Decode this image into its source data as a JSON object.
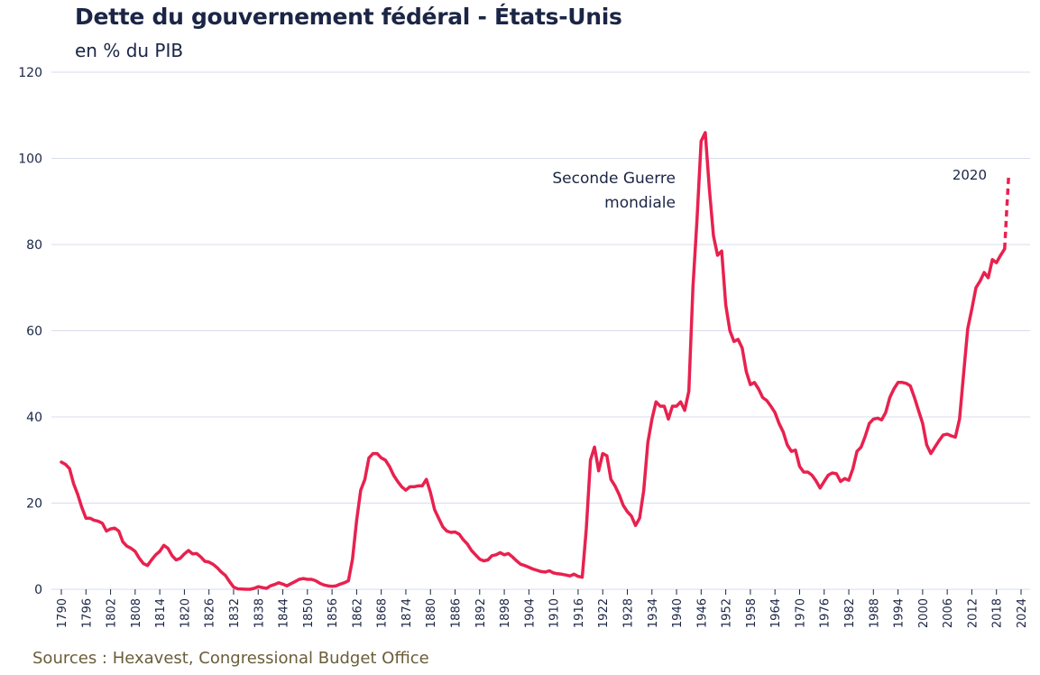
{
  "chart_data": {
    "type": "line",
    "title": "Dette du gouvernement fédéral - États-Unis",
    "subtitle": "en % du PIB",
    "source": "Sources : Hexavest, Congressional Budget Office",
    "xlim": [
      1790,
      2024
    ],
    "ylim": [
      0,
      120
    ],
    "yticks": [
      0,
      20,
      40,
      60,
      80,
      100,
      120
    ],
    "xticks": [
      1790,
      1796,
      1802,
      1808,
      1814,
      1820,
      1826,
      1832,
      1838,
      1844,
      1850,
      1856,
      1862,
      1868,
      1874,
      1880,
      1886,
      1892,
      1898,
      1904,
      1910,
      1916,
      1922,
      1928,
      1934,
      1940,
      1946,
      1952,
      1958,
      1964,
      1970,
      1976,
      1982,
      1988,
      1994,
      2000,
      2006,
      2012,
      2018,
      2024
    ],
    "grid": "horizontal",
    "line_color": "#e8214f",
    "grid_color": "#d9dcec",
    "series": [
      {
        "style": "solid",
        "points": [
          [
            1790,
            29.5
          ],
          [
            1791,
            29
          ],
          [
            1792,
            28
          ],
          [
            1793,
            24.5
          ],
          [
            1794,
            22
          ],
          [
            1795,
            19
          ],
          [
            1796,
            16.5
          ],
          [
            1797,
            16.5
          ],
          [
            1798,
            16
          ],
          [
            1799,
            15.8
          ],
          [
            1800,
            15.3
          ],
          [
            1801,
            13.5
          ],
          [
            1802,
            14
          ],
          [
            1803,
            14.2
          ],
          [
            1804,
            13.5
          ],
          [
            1805,
            11
          ],
          [
            1806,
            10
          ],
          [
            1807,
            9.5
          ],
          [
            1808,
            8.8
          ],
          [
            1809,
            7.2
          ],
          [
            1810,
            6
          ],
          [
            1811,
            5.5
          ],
          [
            1812,
            6.8
          ],
          [
            1813,
            8
          ],
          [
            1814,
            8.8
          ],
          [
            1815,
            10.2
          ],
          [
            1816,
            9.5
          ],
          [
            1817,
            7.8
          ],
          [
            1818,
            6.8
          ],
          [
            1819,
            7.2
          ],
          [
            1820,
            8.2
          ],
          [
            1821,
            9
          ],
          [
            1822,
            8.2
          ],
          [
            1823,
            8.3
          ],
          [
            1824,
            7.5
          ],
          [
            1825,
            6.5
          ],
          [
            1826,
            6.3
          ],
          [
            1827,
            5.8
          ],
          [
            1828,
            5
          ],
          [
            1829,
            4
          ],
          [
            1830,
            3.2
          ],
          [
            1831,
            1.8
          ],
          [
            1832,
            0.5
          ],
          [
            1833,
            0.1
          ],
          [
            1834,
            0.05
          ],
          [
            1835,
            0
          ],
          [
            1836,
            0
          ],
          [
            1837,
            0.2
          ],
          [
            1838,
            0.6
          ],
          [
            1839,
            0.4
          ],
          [
            1840,
            0.2
          ],
          [
            1841,
            0.8
          ],
          [
            1842,
            1.1
          ],
          [
            1843,
            1.5
          ],
          [
            1844,
            1.2
          ],
          [
            1845,
            0.8
          ],
          [
            1846,
            1.3
          ],
          [
            1847,
            1.8
          ],
          [
            1848,
            2.3
          ],
          [
            1849,
            2.5
          ],
          [
            1850,
            2.3
          ],
          [
            1851,
            2.3
          ],
          [
            1852,
            2
          ],
          [
            1853,
            1.4
          ],
          [
            1854,
            1
          ],
          [
            1855,
            0.8
          ],
          [
            1856,
            0.7
          ],
          [
            1857,
            0.8
          ],
          [
            1858,
            1.2
          ],
          [
            1859,
            1.5
          ],
          [
            1860,
            2
          ],
          [
            1861,
            7
          ],
          [
            1862,
            16
          ],
          [
            1863,
            23
          ],
          [
            1864,
            25.5
          ],
          [
            1865,
            30.5
          ],
          [
            1866,
            31.5
          ],
          [
            1867,
            31.5
          ],
          [
            1868,
            30.5
          ],
          [
            1869,
            30
          ],
          [
            1870,
            28.5
          ],
          [
            1871,
            26.5
          ],
          [
            1872,
            25
          ],
          [
            1873,
            23.8
          ],
          [
            1874,
            23
          ],
          [
            1875,
            23.8
          ],
          [
            1876,
            23.8
          ],
          [
            1877,
            24
          ],
          [
            1878,
            24
          ],
          [
            1879,
            25.5
          ],
          [
            1880,
            22.5
          ],
          [
            1881,
            18.5
          ],
          [
            1882,
            16.5
          ],
          [
            1883,
            14.5
          ],
          [
            1884,
            13.5
          ],
          [
            1885,
            13.2
          ],
          [
            1886,
            13.3
          ],
          [
            1887,
            12.8
          ],
          [
            1888,
            11.5
          ],
          [
            1889,
            10.5
          ],
          [
            1890,
            9
          ],
          [
            1891,
            8
          ],
          [
            1892,
            7
          ],
          [
            1893,
            6.6
          ],
          [
            1894,
            6.8
          ],
          [
            1895,
            7.8
          ],
          [
            1896,
            8
          ],
          [
            1897,
            8.5
          ],
          [
            1898,
            8
          ],
          [
            1899,
            8.3
          ],
          [
            1900,
            7.5
          ],
          [
            1901,
            6.6
          ],
          [
            1902,
            5.8
          ],
          [
            1903,
            5.5
          ],
          [
            1904,
            5.1
          ],
          [
            1905,
            4.7
          ],
          [
            1906,
            4.4
          ],
          [
            1907,
            4.1
          ],
          [
            1908,
            4.0
          ],
          [
            1909,
            4.3
          ],
          [
            1910,
            3.8
          ],
          [
            1911,
            3.6
          ],
          [
            1912,
            3.5
          ],
          [
            1913,
            3.3
          ],
          [
            1914,
            3.1
          ],
          [
            1915,
            3.5
          ],
          [
            1916,
            3.0
          ],
          [
            1917,
            2.8
          ],
          [
            1918,
            14
          ],
          [
            1919,
            30
          ],
          [
            1920,
            33
          ],
          [
            1921,
            27.5
          ],
          [
            1922,
            31.5
          ],
          [
            1923,
            31
          ],
          [
            1924,
            25.5
          ],
          [
            1925,
            24
          ],
          [
            1926,
            22
          ],
          [
            1927,
            19.5
          ],
          [
            1928,
            18
          ],
          [
            1929,
            17
          ],
          [
            1930,
            14.8
          ],
          [
            1931,
            16.5
          ],
          [
            1932,
            23
          ],
          [
            1933,
            34
          ],
          [
            1934,
            39.5
          ],
          [
            1935,
            43.5
          ],
          [
            1936,
            42.5
          ],
          [
            1937,
            42.5
          ],
          [
            1938,
            39.5
          ],
          [
            1939,
            42.5
          ],
          [
            1940,
            42.5
          ],
          [
            1941,
            43.5
          ],
          [
            1942,
            41.5
          ],
          [
            1943,
            46
          ],
          [
            1944,
            70
          ],
          [
            1945,
            86
          ],
          [
            1946,
            104
          ],
          [
            1947,
            106
          ],
          [
            1948,
            93
          ],
          [
            1949,
            82
          ],
          [
            1950,
            77.5
          ],
          [
            1951,
            78.5
          ],
          [
            1952,
            66
          ],
          [
            1953,
            60
          ],
          [
            1954,
            57.5
          ],
          [
            1955,
            58
          ],
          [
            1956,
            56
          ],
          [
            1957,
            50.5
          ],
          [
            1958,
            47.5
          ],
          [
            1959,
            48
          ],
          [
            1960,
            46.5
          ],
          [
            1961,
            44.5
          ],
          [
            1962,
            43.8
          ],
          [
            1963,
            42.5
          ],
          [
            1964,
            41
          ],
          [
            1965,
            38.5
          ],
          [
            1966,
            36.5
          ],
          [
            1967,
            33.5
          ],
          [
            1968,
            32
          ],
          [
            1969,
            32.3
          ],
          [
            1970,
            28.5
          ],
          [
            1971,
            27.2
          ],
          [
            1972,
            27.2
          ],
          [
            1973,
            26.5
          ],
          [
            1974,
            25.2
          ],
          [
            1975,
            23.5
          ],
          [
            1976,
            25
          ],
          [
            1977,
            26.5
          ],
          [
            1978,
            27
          ],
          [
            1979,
            26.8
          ],
          [
            1980,
            25
          ],
          [
            1981,
            25.7
          ],
          [
            1982,
            25.3
          ],
          [
            1983,
            28
          ],
          [
            1984,
            32
          ],
          [
            1985,
            33
          ],
          [
            1986,
            35.5
          ],
          [
            1987,
            38.5
          ],
          [
            1988,
            39.5
          ],
          [
            1989,
            39.7
          ],
          [
            1990,
            39.3
          ],
          [
            1991,
            41
          ],
          [
            1992,
            44.5
          ],
          [
            1993,
            46.5
          ],
          [
            1994,
            48
          ],
          [
            1995,
            48
          ],
          [
            1996,
            47.8
          ],
          [
            1997,
            47.2
          ],
          [
            1998,
            44.5
          ],
          [
            1999,
            41.5
          ],
          [
            2000,
            38.5
          ],
          [
            2001,
            33.5
          ],
          [
            2002,
            31.5
          ],
          [
            2003,
            33
          ],
          [
            2004,
            34.5
          ],
          [
            2005,
            35.8
          ],
          [
            2006,
            36
          ],
          [
            2007,
            35.6
          ],
          [
            2008,
            35.3
          ],
          [
            2009,
            39.5
          ],
          [
            2010,
            50
          ],
          [
            2011,
            60.5
          ],
          [
            2012,
            65
          ],
          [
            2013,
            70
          ],
          [
            2014,
            71.5
          ],
          [
            2015,
            73.5
          ],
          [
            2016,
            72.3
          ],
          [
            2017,
            76.5
          ],
          [
            2018,
            75.8
          ],
          [
            2019,
            77.5
          ],
          [
            2020,
            79
          ]
        ]
      },
      {
        "style": "dashed",
        "points": [
          [
            2020,
            79
          ],
          [
            2020.5,
            88
          ],
          [
            2021,
            96.5
          ]
        ]
      }
    ],
    "annotations": [
      {
        "text_lines": [
          "Seconde Guerre",
          "mondiale"
        ],
        "x": 1940,
        "y": 96
      },
      {
        "text_lines": [
          "2020"
        ],
        "x": 2019,
        "y": 96.5
      }
    ]
  }
}
